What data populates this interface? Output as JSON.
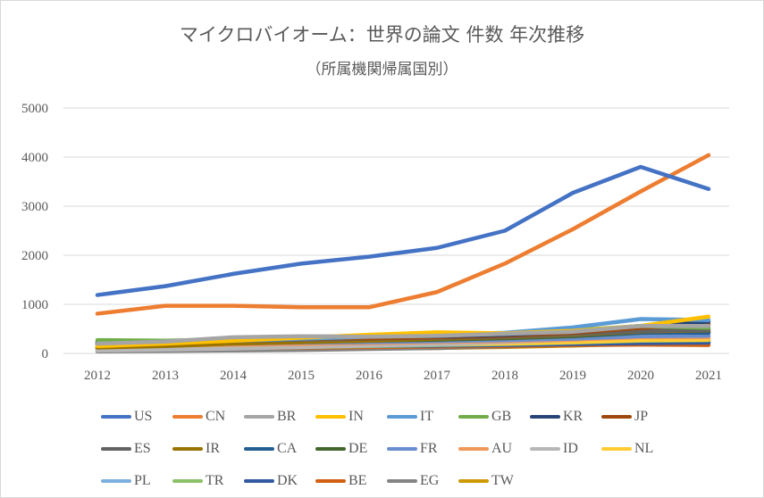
{
  "chart_data": {
    "type": "line",
    "title": "マイクロバイオーム：世界の論文 件数 年次推移",
    "subtitle": "（所属機関帰属国別）",
    "xlabel": "",
    "ylabel": "",
    "categories": [
      "2012",
      "2013",
      "2014",
      "2015",
      "2016",
      "2017",
      "2018",
      "2019",
      "2020",
      "2021"
    ],
    "ylim": [
      0,
      5000
    ],
    "yticks": [
      "0",
      "1000",
      "2000",
      "3000",
      "4000",
      "5000"
    ],
    "grid": true,
    "legend_position": "bottom",
    "series": [
      {
        "name": "US",
        "color": "#4472C4",
        "values": [
          1190,
          1370,
          1620,
          1830,
          1970,
          2150,
          2500,
          3270,
          3800,
          3350
        ]
      },
      {
        "name": "CN",
        "color": "#ED7D31",
        "values": [
          810,
          970,
          970,
          940,
          940,
          1250,
          1830,
          2530,
          3300,
          4040
        ]
      },
      {
        "name": "BR",
        "color": "#A5A5A5",
        "values": [
          200,
          240,
          330,
          350,
          340,
          360,
          400,
          440,
          560,
          560
        ]
      },
      {
        "name": "IN",
        "color": "#FFC000",
        "values": [
          150,
          200,
          260,
          320,
          380,
          430,
          410,
          460,
          560,
          750
        ]
      },
      {
        "name": "IT",
        "color": "#5B9BD5",
        "values": [
          180,
          220,
          260,
          300,
          340,
          380,
          420,
          530,
          700,
          680
        ]
      },
      {
        "name": "GB",
        "color": "#70AD47",
        "values": [
          270,
          260,
          290,
          320,
          340,
          360,
          400,
          470,
          560,
          520
        ]
      },
      {
        "name": "KR",
        "color": "#264478",
        "values": [
          220,
          250,
          290,
          340,
          350,
          350,
          380,
          450,
          560,
          650
        ]
      },
      {
        "name": "JP",
        "color": "#9E480E",
        "values": [
          230,
          240,
          270,
          300,
          310,
          330,
          360,
          420,
          520,
          600
        ]
      },
      {
        "name": "ES",
        "color": "#636363",
        "values": [
          210,
          230,
          260,
          280,
          300,
          320,
          340,
          400,
          460,
          480
        ]
      },
      {
        "name": "IR",
        "color": "#997300",
        "values": [
          120,
          150,
          200,
          230,
          260,
          300,
          330,
          380,
          450,
          470
        ]
      },
      {
        "name": "CA",
        "color": "#255E91",
        "values": [
          200,
          220,
          240,
          260,
          280,
          300,
          330,
          370,
          430,
          420
        ]
      },
      {
        "name": "DE",
        "color": "#43682B",
        "values": [
          180,
          200,
          220,
          240,
          260,
          280,
          310,
          350,
          420,
          440
        ]
      },
      {
        "name": "FR",
        "color": "#698ED0",
        "values": [
          170,
          180,
          200,
          220,
          230,
          250,
          270,
          300,
          350,
          360
        ]
      },
      {
        "name": "AU",
        "color": "#F1975A",
        "values": [
          140,
          160,
          180,
          190,
          210,
          230,
          250,
          280,
          330,
          330
        ]
      },
      {
        "name": "ID",
        "color": "#B7B7B7",
        "values": [
          60,
          80,
          100,
          130,
          160,
          190,
          230,
          280,
          390,
          410
        ]
      },
      {
        "name": "NL",
        "color": "#FFCD33",
        "values": [
          120,
          130,
          150,
          160,
          170,
          190,
          200,
          230,
          270,
          280
        ]
      },
      {
        "name": "PL",
        "color": "#7CAFDD",
        "values": [
          100,
          110,
          130,
          140,
          160,
          180,
          200,
          230,
          280,
          290
        ]
      },
      {
        "name": "TR",
        "color": "#8CC168",
        "values": [
          90,
          100,
          110,
          130,
          150,
          170,
          190,
          220,
          260,
          270
        ]
      },
      {
        "name": "DK",
        "color": "#335AA1",
        "values": [
          110,
          120,
          130,
          140,
          150,
          160,
          170,
          190,
          210,
          220
        ]
      },
      {
        "name": "BE",
        "color": "#D26012",
        "values": [
          90,
          100,
          110,
          120,
          130,
          140,
          150,
          170,
          180,
          170
        ]
      },
      {
        "name": "EG",
        "color": "#848484",
        "values": [
          40,
          50,
          60,
          70,
          90,
          110,
          140,
          180,
          240,
          260
        ]
      },
      {
        "name": "TW",
        "color": "#CC9A06",
        "values": [
          80,
          80,
          90,
          90,
          100,
          110,
          130,
          160,
          200,
          230
        ]
      }
    ]
  }
}
